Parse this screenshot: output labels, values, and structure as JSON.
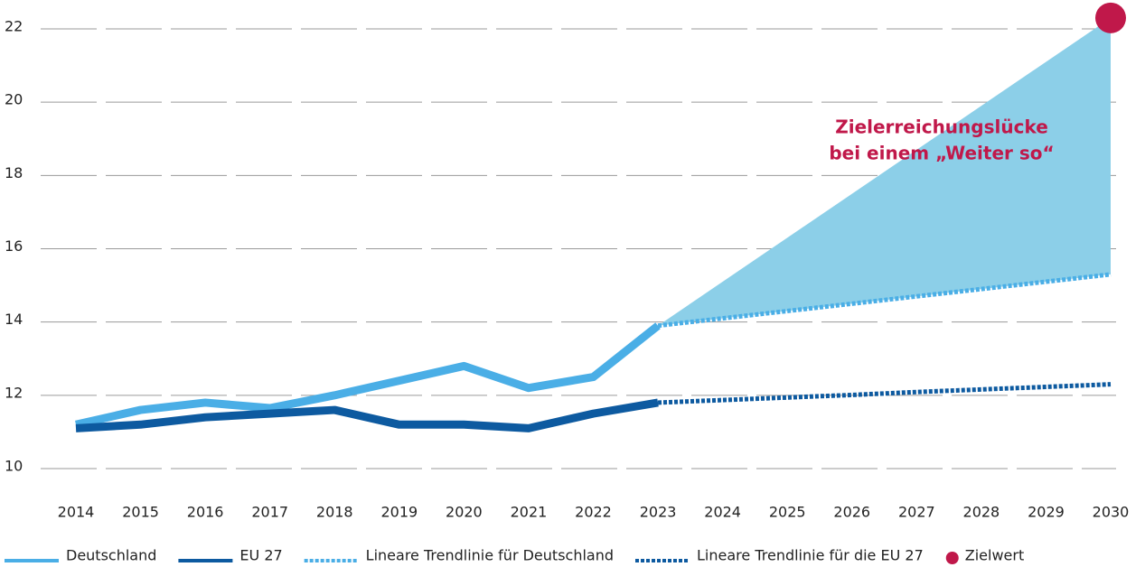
{
  "chart_data": {
    "type": "line",
    "categories": [
      "2014",
      "2015",
      "2016",
      "2017",
      "2018",
      "2019",
      "2020",
      "2021",
      "2022",
      "2023",
      "2024",
      "2025",
      "2026",
      "2027",
      "2028",
      "2029",
      "2030"
    ],
    "series": [
      {
        "name": "Deutschland",
        "color": "#4aaee6",
        "style": "solid",
        "values": [
          11.2,
          11.6,
          11.8,
          11.65,
          12.0,
          12.4,
          12.8,
          12.2,
          12.5,
          13.9,
          null,
          null,
          null,
          null,
          null,
          null,
          null
        ]
      },
      {
        "name": "EU 27",
        "color": "#0d5aa0",
        "style": "solid",
        "values": [
          11.1,
          11.2,
          11.4,
          11.5,
          11.6,
          11.2,
          11.2,
          11.1,
          11.5,
          11.8,
          null,
          null,
          null,
          null,
          null,
          null,
          null
        ]
      },
      {
        "name": "Lineare Trendlinie für Deutschland",
        "color": "#4aaee6",
        "style": "dotted",
        "values": [
          null,
          null,
          null,
          null,
          null,
          null,
          null,
          null,
          null,
          13.9,
          14.1,
          14.3,
          14.5,
          14.7,
          14.9,
          15.1,
          15.3
        ]
      },
      {
        "name": "Lineare Trendlinie für die EU 27",
        "color": "#0d5aa0",
        "style": "dotted",
        "values": [
          null,
          null,
          null,
          null,
          null,
          null,
          null,
          null,
          null,
          11.8,
          11.87,
          11.94,
          12.01,
          12.09,
          12.16,
          12.23,
          12.3
        ]
      },
      {
        "name": "Zielwert",
        "color": "#c0184a",
        "style": "point",
        "values": [
          null,
          null,
          null,
          null,
          null,
          null,
          null,
          null,
          null,
          null,
          null,
          null,
          null,
          null,
          null,
          null,
          22.3
        ]
      }
    ],
    "gap_color": "#8ccfe8",
    "annotation": [
      "Zielerreichungslücke",
      "bei einem „Weiter so“"
    ],
    "ylim": [
      10,
      22
    ],
    "yticks": [
      10,
      12,
      14,
      16,
      18,
      20,
      22
    ],
    "grid": true
  }
}
